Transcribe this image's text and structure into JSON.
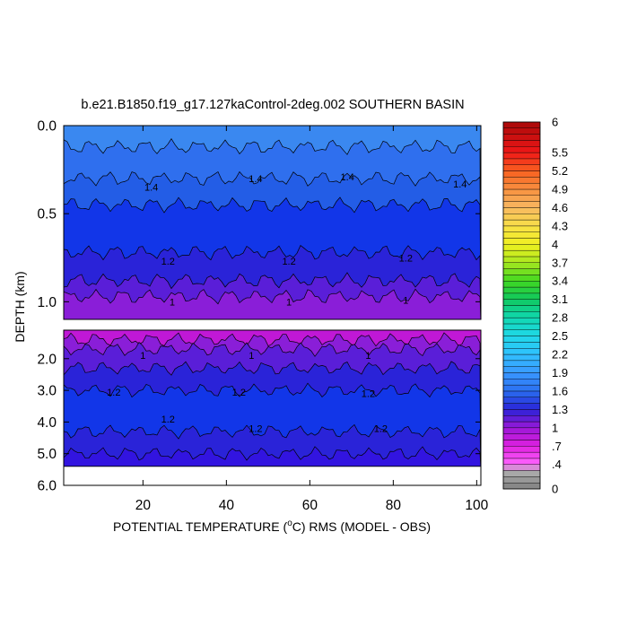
{
  "chart_data": {
    "type": "heatmap",
    "title": "b.e21.B1850.f19_g17.127kaControl-2deg.002 SOUTHERN BASIN",
    "xlabel_pre": "POTENTIAL TEMPERATURE (",
    "xlabel_sup": "o",
    "xlabel_post": "C) RMS (MODEL - OBS)",
    "ylabel": "DEPTH (km)",
    "xlim": [
      1,
      101
    ],
    "x_ticks": [
      "20",
      "40",
      "60",
      "80",
      "100"
    ],
    "x_tick_values": [
      20,
      40,
      60,
      80,
      100
    ],
    "upper_panel": {
      "ylim": [
        0,
        1.1
      ],
      "y_ticks": [
        "0.0",
        "0.5",
        "1.0"
      ],
      "y_tick_values": [
        0,
        0.5,
        1.0
      ]
    },
    "lower_panel": {
      "ylim": [
        1.1,
        6.0
      ],
      "y_ticks": [
        "2.0",
        "3.0",
        "4.0",
        "5.0",
        "6.0"
      ],
      "y_tick_values": [
        2.0,
        3.0,
        4.0,
        5.0,
        6.0
      ],
      "data_bottom_depth": 5.4
    },
    "contour_labels_upper": [
      {
        "x": 22,
        "depth": 0.35,
        "text": "1.4"
      },
      {
        "x": 47,
        "depth": 0.3,
        "text": "1.4"
      },
      {
        "x": 69,
        "depth": 0.29,
        "text": "1.4"
      },
      {
        "x": 96,
        "depth": 0.33,
        "text": "1.4"
      },
      {
        "x": 26,
        "depth": 0.77,
        "text": "1.2"
      },
      {
        "x": 55,
        "depth": 0.77,
        "text": "1.2"
      },
      {
        "x": 83,
        "depth": 0.75,
        "text": "1.2"
      },
      {
        "x": 27,
        "depth": 1.0,
        "text": "1"
      },
      {
        "x": 55,
        "depth": 1.0,
        "text": "1"
      },
      {
        "x": 83,
        "depth": 0.99,
        "text": "1"
      }
    ],
    "contour_labels_lower": [
      {
        "x": 20,
        "depth": 1.9,
        "text": "1"
      },
      {
        "x": 46,
        "depth": 1.9,
        "text": "1"
      },
      {
        "x": 74,
        "depth": 1.9,
        "text": "1"
      },
      {
        "x": 13,
        "depth": 3.05,
        "text": "1.2"
      },
      {
        "x": 43,
        "depth": 3.05,
        "text": "1.2"
      },
      {
        "x": 74,
        "depth": 3.1,
        "text": "1.2"
      },
      {
        "x": 26,
        "depth": 3.9,
        "text": "1.2"
      },
      {
        "x": 47,
        "depth": 4.2,
        "text": "1.2"
      },
      {
        "x": 77,
        "depth": 4.2,
        "text": "1.2"
      }
    ],
    "colorbar": {
      "min": 0,
      "max": 6,
      "step": 0.1,
      "labels": [
        "6",
        "5.5",
        "5.2",
        "4.9",
        "4.6",
        "4.3",
        "4",
        "3.7",
        "3.4",
        "3.1",
        "2.8",
        "2.5",
        "2.2",
        "1.9",
        "1.6",
        "1.3",
        "1",
        ".7",
        ".4",
        "0"
      ],
      "label_values": [
        6,
        5.5,
        5.2,
        4.9,
        4.6,
        4.3,
        4.0,
        3.7,
        3.4,
        3.1,
        2.8,
        2.5,
        2.2,
        1.9,
        1.6,
        1.3,
        1.0,
        0.7,
        0.4,
        0
      ]
    },
    "bands_upper": [
      {
        "depth": 0.0,
        "color": "#3a88f0"
      },
      {
        "depth": 0.12,
        "color": "#2f6fee"
      },
      {
        "depth": 0.3,
        "color": "#235de6"
      },
      {
        "depth": 0.45,
        "color": "#1236e8"
      },
      {
        "depth": 0.72,
        "color": "#2a23d8"
      },
      {
        "depth": 0.88,
        "color": "#5a1ed8"
      },
      {
        "depth": 0.97,
        "color": "#8a1ed8"
      }
    ],
    "bands_lower": [
      {
        "depth": 1.1,
        "color": "#c018d6"
      },
      {
        "depth": 1.4,
        "color": "#8a1ed8"
      },
      {
        "depth": 1.7,
        "color": "#5a1ed8"
      },
      {
        "depth": 2.3,
        "color": "#2a23d8"
      },
      {
        "depth": 3.0,
        "color": "#1236e8"
      },
      {
        "depth": 4.3,
        "color": "#2a23d8"
      },
      {
        "depth": 5.0,
        "color": "#3214e0"
      }
    ]
  }
}
